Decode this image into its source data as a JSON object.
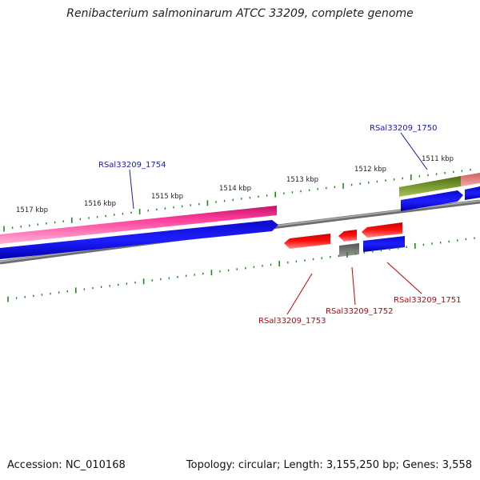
{
  "title": "Renibacterium salmoninarum ATCC 33209, complete genome",
  "footer": {
    "accession": "Accession: NC_010168",
    "summary": "Topology: circular; Length: 3,155,250 bp; Genes: 3,558"
  },
  "ticks": [
    {
      "label": "1517 kbp"
    },
    {
      "label": "1516 kbp"
    },
    {
      "label": "1515 kbp"
    },
    {
      "label": "1514 kbp"
    },
    {
      "label": "1513 kbp"
    },
    {
      "label": "1512 kbp"
    },
    {
      "label": "1511 kbp"
    }
  ],
  "features": [
    {
      "id": "RSal33209_1754",
      "label": "RSal33209_1754",
      "color": "#1a1aa8"
    },
    {
      "id": "RSal33209_1750",
      "label": "RSal33209_1750",
      "color": "#1a1aa8"
    },
    {
      "id": "RSal33209_1753",
      "label": "RSal33209_1753",
      "color": "#cc0000"
    },
    {
      "id": "RSal33209_1752",
      "label": "RSal33209_1752",
      "color": "#cc0000"
    },
    {
      "id": "RSal33209_1751",
      "label": "RSal33209_1751",
      "color": "#cc0000"
    }
  ],
  "colors": {
    "backbone": "#888888",
    "tick": "#1e8a1e",
    "pink": "#e8197d",
    "blue": "#1414f0",
    "red": "#e80000",
    "olive": "#6e8c28",
    "gray": "#707070"
  }
}
